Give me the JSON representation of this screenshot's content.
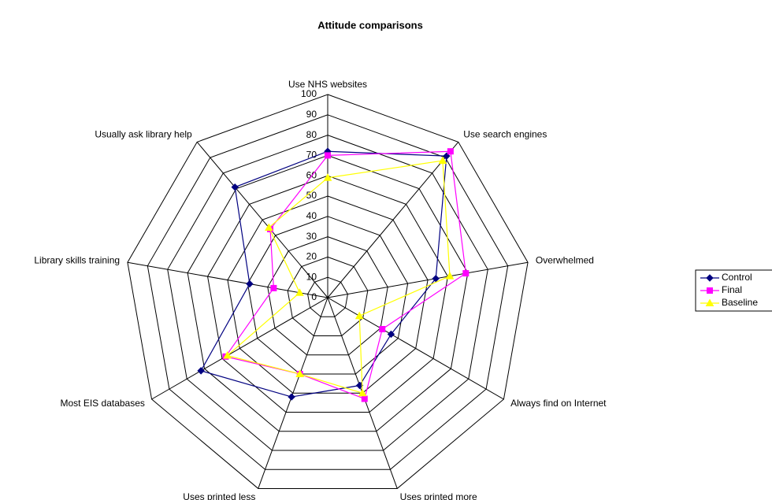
{
  "chart_data": {
    "type": "radar",
    "title": "Attitude comparisons",
    "categories": [
      "Use NHS websites",
      "Use search engines",
      "Overwhelmed",
      "Always find on Internet",
      "Uses printed more",
      "Uses printed less",
      "Most EIS databases",
      "Library skills training",
      "Usually ask library help"
    ],
    "series": [
      {
        "name": "Control",
        "color": "#000080",
        "marker": "diamond",
        "values": [
          72,
          91,
          54,
          36,
          46,
          52,
          72,
          39,
          71
        ]
      },
      {
        "name": "Final",
        "color": "#ff00ff",
        "marker": "square",
        "values": [
          70,
          94,
          69,
          31,
          53,
          40,
          58,
          27,
          44
        ]
      },
      {
        "name": "Baseline",
        "color": "#ffff00",
        "marker": "triangle",
        "values": [
          59,
          88,
          61,
          18,
          50,
          40,
          57,
          14,
          45
        ]
      }
    ],
    "rlim": [
      0,
      100
    ],
    "rticks": [
      0,
      10,
      20,
      30,
      40,
      50,
      60,
      70,
      80,
      90,
      100
    ],
    "grid": true,
    "legend": "right"
  }
}
